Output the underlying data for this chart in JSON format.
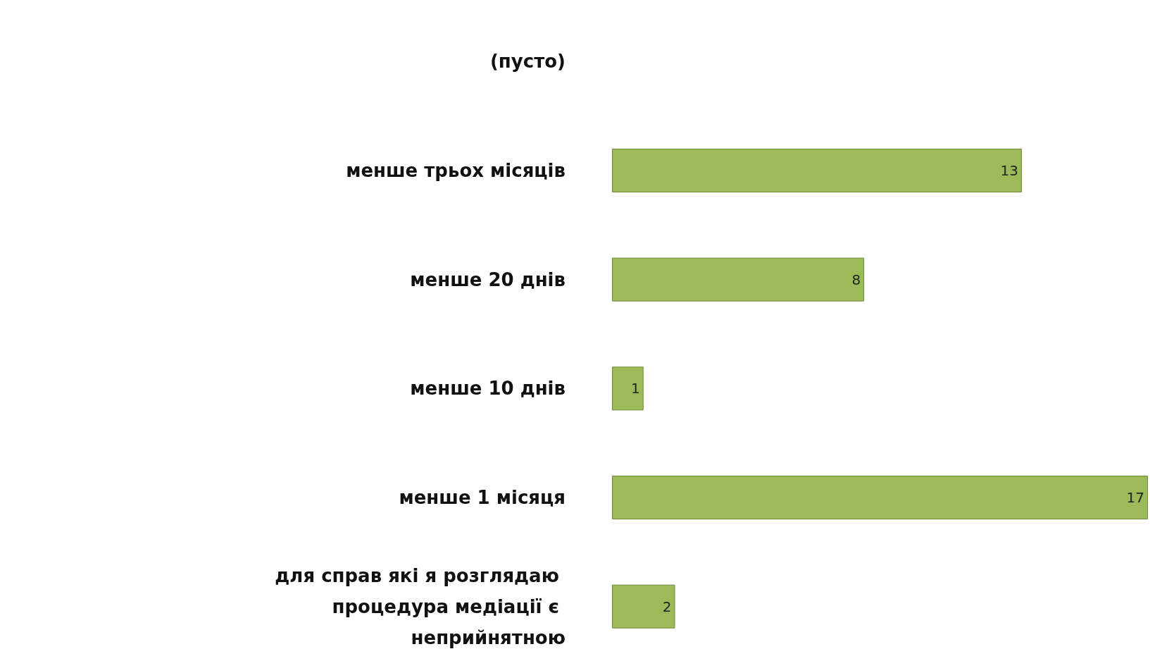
{
  "chart_data": {
    "type": "bar",
    "orientation": "horizontal",
    "categories": [
      "(пусто)",
      "менше трьох місяців",
      "менше 20 днів",
      "менше 10 днів",
      "менше 1 місяця",
      "для справ які я розглядаю процедура медіації є неприйнятною"
    ],
    "values": [
      null,
      13,
      8,
      1,
      17,
      2
    ],
    "color": "#9bbb59",
    "data_labels": true
  }
}
